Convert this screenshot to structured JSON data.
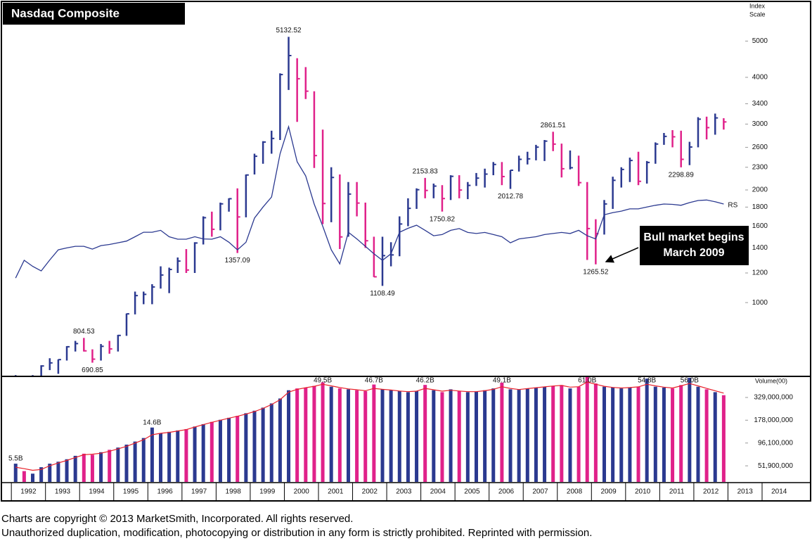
{
  "chart_data": {
    "type": "ohlc",
    "title": "Nasdaq Composite",
    "y_axis_label": [
      "Index",
      "Scale"
    ],
    "log": true,
    "up_color": "#2b3990",
    "down_color": "#e0218a",
    "xlim": [
      1991.77,
      2015.36
    ],
    "xticks": [
      1992,
      1993,
      1994,
      1995,
      1996,
      1997,
      1998,
      1999,
      2000,
      2001,
      2002,
      2003,
      2004,
      2005,
      2006,
      2007,
      2008,
      2009,
      2010,
      2011,
      2012,
      2013,
      2014
    ],
    "ylim": [
      635,
      6300
    ],
    "yticks": [
      1000,
      1200,
      1400,
      1600,
      1800,
      2000,
      2300,
      2600,
      3000,
      3400,
      4000,
      5000
    ],
    "x": [
      1992.125,
      1992.375,
      1992.625,
      1992.875,
      1993.125,
      1993.375,
      1993.625,
      1993.875,
      1994.125,
      1994.375,
      1994.625,
      1994.875,
      1995.125,
      1995.375,
      1995.625,
      1995.875,
      1996.125,
      1996.375,
      1996.625,
      1996.875,
      1997.125,
      1997.375,
      1997.625,
      1997.875,
      1998.125,
      1998.375,
      1998.625,
      1998.875,
      1999.125,
      1999.375,
      1999.625,
      1999.875,
      2000.125,
      2000.375,
      2000.625,
      2000.875,
      2001.125,
      2001.375,
      2001.625,
      2001.875,
      2002.125,
      2002.375,
      2002.625,
      2002.875,
      2003.125,
      2003.375,
      2003.625,
      2003.875,
      2004.125,
      2004.375,
      2004.625,
      2004.875,
      2005.125,
      2005.375,
      2005.625,
      2005.875,
      2006.125,
      2006.375,
      2006.625,
      2006.875,
      2007.125,
      2007.375,
      2007.625,
      2007.875,
      2008.125,
      2008.375,
      2008.625,
      2008.875,
      2009.125,
      2009.375,
      2009.625,
      2009.875,
      2010.125,
      2010.375,
      2010.625,
      2010.875,
      2011.125,
      2011.375,
      2011.625,
      2011.875,
      2012.125,
      2012.375,
      2012.625,
      2012.875
    ],
    "high": [
      640,
      610,
      640,
      680,
      710,
      705,
      765,
      790,
      804.53,
      750,
      775,
      790,
      820,
      935,
      1070,
      1070,
      1120,
      1250,
      1240,
      1320,
      1390,
      1450,
      1700,
      1750,
      1850,
      1900,
      2020,
      2200,
      2500,
      2700,
      2880,
      4100,
      5132.52,
      4500,
      4260,
      3670,
      2900,
      2300,
      2200,
      2100,
      2100,
      1850,
      1500,
      1500,
      1450,
      1700,
      1900,
      2020,
      2153.83,
      2080,
      2060,
      2190,
      2190,
      2100,
      2220,
      2280,
      2375,
      2375,
      2260,
      2470,
      2530,
      2640,
      2720,
      2861.51,
      2660,
      2550,
      2470,
      2100,
      1670,
      1880,
      2170,
      2300,
      2440,
      2530,
      2390,
      2680,
      2840,
      2890,
      2880,
      2690,
      3130,
      3140,
      3200,
      3110
    ],
    "low": [
      600,
      560,
      600,
      605,
      660,
      645,
      700,
      740,
      740,
      690.85,
      700,
      730,
      740,
      815,
      930,
      990,
      990,
      1090,
      1060,
      1200,
      1200,
      1200,
      1430,
      1500,
      1560,
      1750,
      1357.09,
      1690,
      2200,
      2350,
      2500,
      2720,
      3700,
      3040,
      3500,
      2290,
      1620,
      1640,
      1390,
      1500,
      1700,
      1400,
      1170,
      1108.49,
      1250,
      1330,
      1600,
      1780,
      1900,
      1900,
      1750.82,
      1880,
      1900,
      1890,
      2050,
      2030,
      2190,
      2060,
      2012.78,
      2240,
      2340,
      2400,
      2390,
      2540,
      2160,
      2270,
      2050,
      1300,
      1265.52,
      1520,
      1780,
      2030,
      2100,
      2060,
      2080,
      2350,
      2640,
      2600,
      2298.89,
      2330,
      2600,
      2730,
      2810,
      2900
    ],
    "close": [
      603,
      563,
      610,
      677,
      690,
      704,
      762,
      777,
      743,
      706,
      764,
      752,
      817,
      933,
      1044,
      1052,
      1101,
      1185,
      1226,
      1291,
      1222,
      1443,
      1686,
      1570,
      1836,
      1895,
      1694,
      2193,
      2461,
      2686,
      2746,
      4069,
      4573,
      3966,
      3673,
      2471,
      1840,
      2160,
      1498,
      1950,
      1845,
      1463,
      1172,
      1335,
      1341,
      1622,
      1786,
      2003,
      1994,
      2048,
      1897,
      2175,
      1999,
      2057,
      2151,
      2205,
      2340,
      2172,
      2258,
      2415,
      2422,
      2603,
      2701,
      2652,
      2279,
      2293,
      2092,
      1577,
      1528,
      1835,
      2122,
      2269,
      2398,
      2109,
      2369,
      2653,
      2781,
      2774,
      2415,
      2605,
      3092,
      2935,
      3116,
      3040
    ],
    "high_labels": [
      null,
      null,
      null,
      null,
      null,
      null,
      null,
      null,
      "804.53",
      null,
      null,
      null,
      null,
      null,
      null,
      null,
      null,
      null,
      null,
      null,
      null,
      null,
      null,
      null,
      null,
      null,
      null,
      null,
      null,
      null,
      null,
      null,
      "5132.52",
      null,
      null,
      null,
      null,
      null,
      null,
      null,
      null,
      null,
      null,
      null,
      null,
      null,
      null,
      null,
      "2153.83",
      null,
      null,
      null,
      null,
      null,
      null,
      null,
      null,
      null,
      null,
      null,
      null,
      null,
      null,
      "2861.51",
      null,
      null,
      null,
      null,
      null,
      null,
      null,
      null,
      null,
      null,
      null,
      null,
      null,
      null,
      null,
      null,
      null,
      null,
      null,
      null
    ],
    "low_labels": [
      null,
      null,
      null,
      null,
      null,
      null,
      null,
      null,
      null,
      "690.85",
      null,
      null,
      null,
      null,
      null,
      null,
      null,
      null,
      null,
      null,
      null,
      null,
      null,
      null,
      null,
      null,
      "1357.09",
      null,
      null,
      null,
      null,
      null,
      null,
      null,
      null,
      null,
      null,
      null,
      null,
      null,
      null,
      null,
      null,
      "1108.49",
      null,
      null,
      null,
      null,
      null,
      null,
      "1750.82",
      null,
      null,
      null,
      null,
      null,
      null,
      null,
      "2012.78",
      null,
      null,
      null,
      null,
      null,
      null,
      null,
      null,
      null,
      "1265.52",
      null,
      null,
      null,
      null,
      null,
      null,
      null,
      null,
      null,
      "2298.89",
      null,
      null,
      null,
      null,
      null
    ],
    "rs": {
      "name": "RS",
      "color": "#2b3990",
      "values": [
        1163,
        1297,
        1250,
        1215,
        1300,
        1384,
        1400,
        1414,
        1414,
        1390,
        1420,
        1430,
        1445,
        1460,
        1500,
        1542,
        1542,
        1560,
        1500,
        1477,
        1477,
        1500,
        1480,
        1477,
        1500,
        1450,
        1384,
        1450,
        1682,
        1800,
        1915,
        2500,
        2952,
        2378,
        2181,
        1834,
        1600,
        1384,
        1269,
        1542,
        1480,
        1414,
        1350,
        1297,
        1350,
        1542,
        1580,
        1610,
        1560,
        1509,
        1520,
        1560,
        1577,
        1540,
        1530,
        1540,
        1520,
        1500,
        1445,
        1480,
        1490,
        1500,
        1520,
        1530,
        1540,
        1530,
        1560,
        1509,
        1480,
        1717,
        1740,
        1756,
        1780,
        1780,
        1800,
        1820,
        1834,
        1830,
        1820,
        1850,
        1874,
        1880,
        1860,
        1834
      ]
    },
    "volume": {
      "label": "Volume(00)",
      "log": true,
      "ylim": [
        33600000,
        560000000
      ],
      "yticks": [
        {
          "value": 51900000,
          "label": "51,900,000"
        },
        {
          "value": 96100000,
          "label": "96,100,000"
        },
        {
          "value": 178000000,
          "label": "178,000,000"
        },
        {
          "value": 329000000,
          "label": "329,000,000"
        }
      ],
      "values": [
        55000000,
        45000000,
        42000000,
        50000000,
        55000000,
        58000000,
        62000000,
        68000000,
        72000000,
        70000000,
        75000000,
        80000000,
        85000000,
        92000000,
        100000000,
        110000000,
        146000000,
        125000000,
        130000000,
        135000000,
        140000000,
        150000000,
        160000000,
        170000000,
        180000000,
        190000000,
        200000000,
        215000000,
        230000000,
        250000000,
        280000000,
        320000000,
        400000000,
        420000000,
        430000000,
        450000000,
        495000000,
        440000000,
        420000000,
        410000000,
        400000000,
        390000000,
        467000000,
        410000000,
        400000000,
        390000000,
        380000000,
        390000000,
        462000000,
        400000000,
        380000000,
        410000000,
        390000000,
        380000000,
        385000000,
        400000000,
        420000000,
        491000000,
        410000000,
        405000000,
        420000000,
        430000000,
        440000000,
        450000000,
        460000000,
        420000000,
        440000000,
        610000000,
        480000000,
        440000000,
        430000000,
        420000000,
        430000000,
        440000000,
        548000000,
        440000000,
        430000000,
        420000000,
        460000000,
        560000000,
        440000000,
        410000000,
        380000000,
        350000000
      ],
      "value_labels": [
        "5.5B",
        null,
        null,
        null,
        null,
        null,
        null,
        null,
        null,
        null,
        null,
        null,
        null,
        null,
        null,
        null,
        "14.6B",
        null,
        null,
        null,
        null,
        null,
        null,
        null,
        null,
        null,
        null,
        null,
        null,
        null,
        null,
        null,
        null,
        null,
        null,
        null,
        "49.5B",
        null,
        null,
        null,
        null,
        null,
        "46.7B",
        null,
        null,
        null,
        null,
        null,
        "46.2B",
        null,
        null,
        null,
        null,
        null,
        null,
        null,
        null,
        "49.1B",
        null,
        null,
        null,
        null,
        null,
        null,
        null,
        null,
        null,
        "61.0B",
        null,
        null,
        null,
        null,
        null,
        null,
        "54.8B",
        null,
        null,
        null,
        null,
        "56.0B",
        null,
        null,
        null,
        null
      ],
      "ma": {
        "color": "#e8202a",
        "values": [
          50000000,
          48000000,
          46000000,
          47000000,
          52000000,
          56000000,
          60000000,
          65000000,
          70000000,
          71000000,
          73000000,
          77000000,
          82000000,
          88000000,
          96000000,
          105000000,
          120000000,
          125000000,
          128000000,
          133000000,
          138000000,
          148000000,
          158000000,
          168000000,
          178000000,
          188000000,
          198000000,
          210000000,
          225000000,
          245000000,
          272000000,
          310000000,
          380000000,
          410000000,
          428000000,
          445000000,
          470000000,
          450000000,
          430000000,
          415000000,
          405000000,
          395000000,
          420000000,
          410000000,
          402000000,
          392000000,
          385000000,
          390000000,
          420000000,
          405000000,
          390000000,
          400000000,
          392000000,
          385000000,
          385000000,
          395000000,
          410000000,
          440000000,
          420000000,
          408000000,
          418000000,
          428000000,
          438000000,
          448000000,
          455000000,
          435000000,
          440000000,
          500000000,
          470000000,
          445000000,
          432000000,
          425000000,
          430000000,
          438000000,
          470000000,
          450000000,
          435000000,
          425000000,
          450000000,
          480000000,
          450000000,
          420000000,
          395000000,
          370000000
        ]
      }
    },
    "annotation": [
      "Bull market begins",
      "March 2009"
    ]
  },
  "footer": [
    "Charts are copyright © 2013 MarketSmith, Incorporated. All rights reserved.",
    "Unauthorized duplication, modification, photocopying or distribution in any form is strictly prohibited. Reprinted with permission."
  ]
}
